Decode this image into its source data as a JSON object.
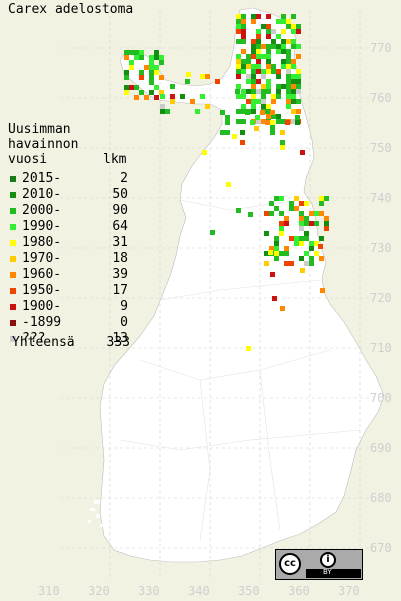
{
  "title": "Carex adelostoma",
  "legend": {
    "heading_lines": [
      "Uusimman",
      "havainnon",
      "vuosi"
    ],
    "count_heading": "lkm",
    "entries": [
      {
        "label": "2015-",
        "count": "2",
        "color": "#1a7a1a"
      },
      {
        "label": "2010-",
        "count": "50",
        "color": "#128f12"
      },
      {
        "label": "2000-",
        "count": "90",
        "color": "#22bb22"
      },
      {
        "label": "1990-",
        "count": "64",
        "color": "#33ee33"
      },
      {
        "label": "1980-",
        "count": "31",
        "color": "#ffff00"
      },
      {
        "label": "1970-",
        "count": "18",
        "color": "#ffcc00"
      },
      {
        "label": "1960-",
        "count": "39",
        "color": "#ff8800"
      },
      {
        "label": "1950-",
        "count": "17",
        "color": "#ee4400"
      },
      {
        "label": "1900-",
        "count": "9",
        "color": "#cc1111"
      },
      {
        "label": "-1899",
        "count": "0",
        "color": "#881111"
      },
      {
        "label": "???",
        "count": "13",
        "color": "#cccccc"
      }
    ],
    "total_label": "Yhteensä",
    "total_count": "333"
  },
  "grid": {
    "y_labels": [
      "770",
      "760",
      "750",
      "740",
      "730",
      "720",
      "710",
      "700",
      "690",
      "680",
      "670"
    ],
    "x_labels": [
      "310",
      "320",
      "330",
      "340",
      "350",
      "360",
      "370"
    ]
  },
  "license": {
    "symbol": "cc",
    "by_label": "BY"
  }
}
